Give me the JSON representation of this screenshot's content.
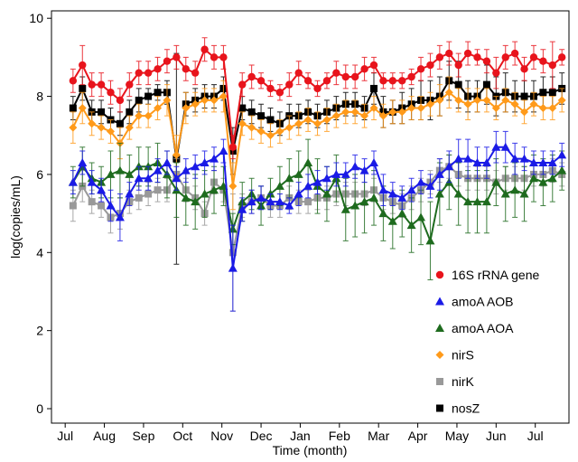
{
  "chart_data": {
    "type": "line",
    "x_label": "Time (month)",
    "y_label": "log(copies/mL)",
    "xlim": [
      -0.35,
      12.86
    ],
    "xticks": [
      {
        "value": 0,
        "label": "Jul"
      },
      {
        "value": 1,
        "label": "Aug"
      },
      {
        "value": 2,
        "label": "Sep"
      },
      {
        "value": 3,
        "label": "Oct"
      },
      {
        "value": 4,
        "label": "Nov"
      },
      {
        "value": 5,
        "label": "Dec"
      },
      {
        "value": 6,
        "label": "Jan"
      },
      {
        "value": 7,
        "label": "Feb"
      },
      {
        "value": 8,
        "label": "Mar"
      },
      {
        "value": 9,
        "label": "Apr"
      },
      {
        "value": 10,
        "label": "May"
      },
      {
        "value": 11,
        "label": "Jun"
      },
      {
        "value": 12,
        "label": "Jul"
      }
    ],
    "ylim": [
      -0.37,
      10.19
    ],
    "yticks": [
      0,
      2,
      4,
      6,
      8,
      10
    ],
    "legend": "lower right",
    "x": [
      0.2,
      0.44,
      0.68,
      0.92,
      1.16,
      1.4,
      1.64,
      1.88,
      2.12,
      2.36,
      2.6,
      2.84,
      3.08,
      3.32,
      3.56,
      3.8,
      4.04,
      4.28,
      4.52,
      4.76,
      5.0,
      5.24,
      5.48,
      5.72,
      5.96,
      6.2,
      6.44,
      6.68,
      6.92,
      7.16,
      7.4,
      7.64,
      7.88,
      8.12,
      8.36,
      8.6,
      8.84,
      9.08,
      9.32,
      9.56,
      9.8,
      10.04,
      10.28,
      10.52,
      10.76,
      11.0,
      11.24,
      11.48,
      11.72,
      11.96,
      12.2,
      12.44,
      12.68
    ],
    "series": [
      {
        "name": "16S rRNA gene",
        "color": "#e8141c",
        "marker": "circle",
        "values": [
          8.4,
          8.8,
          8.3,
          8.3,
          8.1,
          7.9,
          8.3,
          8.6,
          8.6,
          8.7,
          8.9,
          9.0,
          8.7,
          8.6,
          9.2,
          9.0,
          9.0,
          6.7,
          8.3,
          8.5,
          8.4,
          8.2,
          8.1,
          8.3,
          8.6,
          8.4,
          8.2,
          8.4,
          8.6,
          8.5,
          8.5,
          8.7,
          8.8,
          8.4,
          8.4,
          8.4,
          8.5,
          8.7,
          8.8,
          9.0,
          9.1,
          8.8,
          9.1,
          9.0,
          8.9,
          8.6,
          9.0,
          9.1,
          8.7,
          9.0,
          8.9,
          8.8,
          9.0
        ],
        "errors": [
          0.3,
          0.5,
          0.3,
          0.3,
          0.3,
          0.3,
          0.3,
          0.3,
          0.3,
          0.3,
          0.3,
          0.3,
          0.3,
          0.3,
          0.3,
          0.3,
          0.3,
          0.3,
          0.3,
          0.3,
          0.2,
          0.2,
          0.2,
          0.3,
          0.3,
          0.2,
          0.2,
          0.2,
          0.3,
          0.3,
          0.3,
          0.3,
          0.2,
          0.2,
          0.2,
          0.2,
          0.2,
          0.3,
          0.3,
          0.3,
          0.3,
          0.3,
          0.3,
          0.2,
          0.3,
          0.4,
          0.3,
          0.3,
          0.3,
          0.3,
          0.3,
          0.6,
          0.2
        ]
      },
      {
        "name": "amoA AOB",
        "color": "#1a1ae6",
        "marker": "triangle",
        "values": [
          5.8,
          6.3,
          5.8,
          5.6,
          5.2,
          4.9,
          5.5,
          5.9,
          5.9,
          6.1,
          6.3,
          5.9,
          6.1,
          6.2,
          6.3,
          6.4,
          6.6,
          3.6,
          5.1,
          5.3,
          5.4,
          5.3,
          5.3,
          5.2,
          5.5,
          5.7,
          5.8,
          5.9,
          6.0,
          6.0,
          6.2,
          6.1,
          6.3,
          5.6,
          5.5,
          5.4,
          5.6,
          5.8,
          5.7,
          6.0,
          6.2,
          6.4,
          6.4,
          6.3,
          6.3,
          6.7,
          6.7,
          6.4,
          6.4,
          6.3,
          6.3,
          6.3,
          6.5
        ],
        "errors": [
          0.3,
          0.3,
          0.3,
          0.3,
          0.4,
          0.6,
          0.3,
          0.3,
          0.3,
          0.3,
          0.3,
          0.3,
          0.3,
          0.3,
          0.3,
          0.3,
          0.3,
          1.1,
          0.3,
          0.3,
          0.3,
          0.2,
          0.2,
          0.2,
          0.3,
          0.3,
          0.3,
          0.3,
          0.3,
          0.3,
          0.3,
          0.3,
          0.3,
          0.4,
          0.3,
          0.3,
          0.3,
          0.3,
          0.3,
          0.4,
          0.4,
          0.5,
          0.5,
          0.4,
          0.4,
          0.4,
          0.4,
          0.4,
          0.3,
          0.3,
          0.3,
          0.3,
          0.3
        ]
      },
      {
        "name": "amoA AOA",
        "color": "#1e6b1e",
        "marker": "triangle",
        "values": [
          5.8,
          6.2,
          5.9,
          5.8,
          6.0,
          6.1,
          6.0,
          6.2,
          6.2,
          6.3,
          6.0,
          5.6,
          5.4,
          5.3,
          5.5,
          5.6,
          5.7,
          4.6,
          5.3,
          5.5,
          5.2,
          5.5,
          5.7,
          5.9,
          6.0,
          6.3,
          5.7,
          5.5,
          5.9,
          5.1,
          5.2,
          5.3,
          5.4,
          5.0,
          4.8,
          5.0,
          4.7,
          4.9,
          4.3,
          5.5,
          5.8,
          5.5,
          5.3,
          5.3,
          5.3,
          5.8,
          5.5,
          5.6,
          5.5,
          5.9,
          5.8,
          5.9,
          6.1
        ],
        "errors": [
          0.4,
          0.5,
          0.4,
          0.4,
          0.6,
          0.7,
          0.5,
          0.5,
          0.5,
          0.5,
          0.6,
          0.7,
          0.7,
          0.7,
          0.6,
          0.6,
          0.5,
          0.4,
          0.5,
          0.4,
          0.5,
          0.4,
          0.5,
          0.5,
          0.6,
          0.6,
          0.7,
          0.7,
          0.6,
          0.8,
          0.8,
          0.8,
          0.7,
          0.7,
          0.7,
          0.6,
          0.7,
          0.7,
          1.0,
          0.8,
          0.7,
          0.8,
          0.8,
          0.8,
          0.8,
          0.6,
          0.7,
          0.7,
          0.7,
          0.6,
          0.6,
          0.6,
          0.5
        ]
      },
      {
        "name": "nirS",
        "color": "#ff9a1a",
        "marker": "diamond",
        "values": [
          7.2,
          7.7,
          7.3,
          7.2,
          7.1,
          6.8,
          7.2,
          7.5,
          7.5,
          7.7,
          7.9,
          6.5,
          7.7,
          7.8,
          7.9,
          7.9,
          8.0,
          5.7,
          7.3,
          7.2,
          7.1,
          7.0,
          7.1,
          7.2,
          7.3,
          7.4,
          7.3,
          7.4,
          7.5,
          7.6,
          7.6,
          7.5,
          7.7,
          7.5,
          7.6,
          7.6,
          7.7,
          7.7,
          7.8,
          7.9,
          8.1,
          7.9,
          7.8,
          7.9,
          7.9,
          7.7,
          7.9,
          7.8,
          7.6,
          7.8,
          7.7,
          7.7,
          7.9
        ],
        "errors": [
          0.4,
          0.4,
          0.3,
          0.3,
          0.3,
          0.4,
          0.3,
          0.3,
          0.3,
          0.3,
          0.4,
          0.5,
          0.4,
          0.3,
          0.3,
          0.3,
          0.4,
          0.6,
          0.3,
          0.3,
          0.3,
          0.3,
          0.3,
          0.3,
          0.3,
          0.3,
          0.3,
          0.3,
          0.3,
          0.3,
          0.3,
          0.3,
          0.3,
          0.3,
          0.3,
          0.3,
          0.3,
          0.3,
          0.3,
          0.4,
          0.4,
          0.3,
          0.4,
          0.3,
          0.3,
          0.3,
          0.3,
          0.3,
          0.3,
          0.3,
          0.3,
          0.3,
          0.3
        ]
      },
      {
        "name": "nirK",
        "color": "#999999",
        "marker": "square",
        "values": [
          5.2,
          5.7,
          5.3,
          5.2,
          4.9,
          5.0,
          5.3,
          5.4,
          5.5,
          5.6,
          5.6,
          6.0,
          5.6,
          5.4,
          5.0,
          5.8,
          5.6,
          4.0,
          5.2,
          5.3,
          5.4,
          5.2,
          5.2,
          5.4,
          5.3,
          5.3,
          5.4,
          5.4,
          5.5,
          5.5,
          5.5,
          5.5,
          5.6,
          5.4,
          5.3,
          5.2,
          5.4,
          5.6,
          5.8,
          6.1,
          6.2,
          6.0,
          5.9,
          5.9,
          5.9,
          5.8,
          5.9,
          5.9,
          5.9,
          6.0,
          6.0,
          6.1,
          6.0
        ],
        "errors": [
          0.4,
          0.4,
          0.3,
          0.3,
          0.4,
          0.4,
          0.3,
          0.3,
          0.3,
          0.3,
          0.3,
          0.4,
          0.3,
          0.3,
          0.3,
          0.3,
          0.3,
          1.5,
          0.3,
          0.3,
          0.3,
          0.3,
          0.3,
          0.3,
          0.3,
          0.3,
          0.3,
          0.3,
          0.3,
          0.3,
          0.3,
          0.3,
          0.3,
          0.3,
          0.3,
          0.3,
          0.3,
          0.3,
          0.3,
          0.3,
          0.3,
          0.3,
          0.3,
          0.3,
          0.3,
          0.3,
          0.3,
          0.3,
          0.3,
          0.3,
          0.3,
          0.3,
          0.3
        ]
      },
      {
        "name": "nosZ",
        "color": "#000000",
        "marker": "square",
        "values": [
          7.7,
          8.2,
          7.6,
          7.6,
          7.4,
          7.3,
          7.6,
          7.9,
          8.0,
          8.1,
          8.1,
          6.4,
          7.8,
          7.9,
          8.0,
          8.0,
          8.2,
          6.6,
          7.7,
          7.6,
          7.5,
          7.4,
          7.3,
          7.5,
          7.5,
          7.6,
          7.5,
          7.6,
          7.7,
          7.8,
          7.8,
          7.7,
          8.2,
          7.6,
          7.6,
          7.7,
          7.8,
          7.9,
          7.9,
          8.0,
          8.4,
          8.3,
          8.0,
          8.0,
          8.3,
          8.0,
          8.1,
          8.0,
          8.0,
          8.0,
          8.1,
          8.1,
          8.2
        ],
        "errors": [
          0.3,
          0.3,
          0.3,
          0.3,
          0.3,
          0.3,
          0.3,
          0.3,
          0.2,
          0.2,
          0.3,
          2.7,
          0.3,
          0.3,
          0.3,
          0.3,
          0.3,
          0.6,
          0.3,
          0.3,
          0.3,
          0.3,
          0.3,
          0.3,
          0.3,
          0.3,
          0.3,
          0.3,
          0.3,
          0.3,
          0.3,
          0.3,
          0.4,
          0.4,
          0.3,
          0.4,
          0.4,
          0.5,
          0.5,
          0.5,
          0.5,
          0.6,
          0.4,
          0.4,
          0.5,
          0.5,
          0.5,
          0.4,
          0.4,
          0.4,
          0.4,
          0.4,
          0.4
        ]
      }
    ]
  }
}
